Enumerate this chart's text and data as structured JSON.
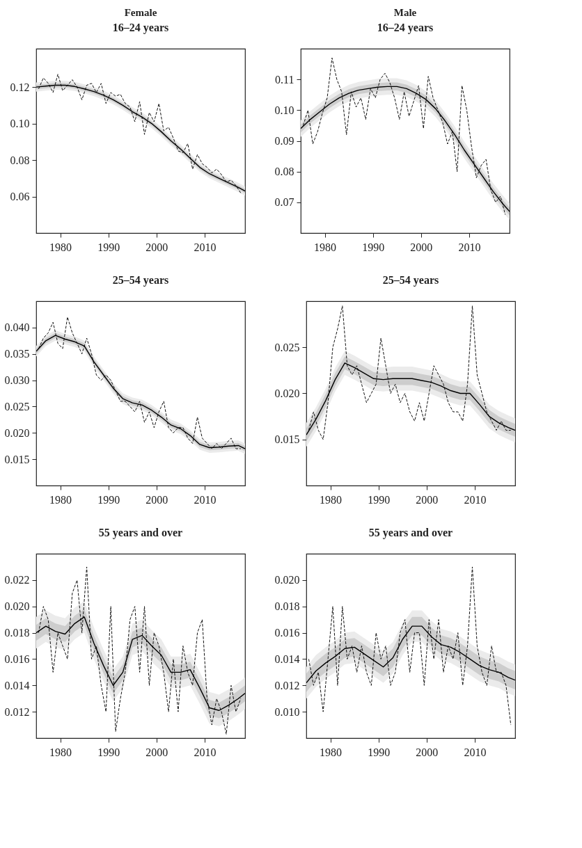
{
  "chart_data": [
    {
      "type": "line",
      "title": "Female",
      "subtitle": "16–24 years",
      "xlim": [
        1975,
        2018.4
      ],
      "ylim": [
        0.04,
        0.141
      ],
      "xticks": [
        1980,
        1990,
        2000,
        2010
      ],
      "yticks": [
        {
          "value": 0.06,
          "label": "0.06"
        },
        {
          "value": 0.08,
          "label": "0.08"
        },
        {
          "value": 0.1,
          "label": "0.10"
        },
        {
          "value": 0.12,
          "label": "0.12"
        }
      ],
      "grid": false,
      "series": [
        {
          "type": "line",
          "color": "#ebebeb",
          "x": [
            1975,
            1977,
            1979,
            1981,
            1983,
            1985,
            1987,
            1989,
            1991,
            1993,
            1995,
            1997,
            1999,
            2001,
            2003,
            2005,
            2007,
            2009,
            2011,
            2013,
            2015,
            2017,
            2018.4
          ],
          "values": [
            null,
            null,
            null,
            null,
            null,
            null,
            null,
            null,
            null,
            null,
            null,
            null,
            null,
            null,
            null,
            null,
            null,
            null,
            null,
            null,
            null,
            null,
            null
          ],
          "lower": [
            0.1175,
            0.118,
            0.1185,
            0.1185,
            0.1178,
            0.1165,
            0.115,
            0.113,
            0.1105,
            0.1075,
            0.104,
            0.101,
            0.0975,
            0.093,
            0.088,
            0.0835,
            0.0785,
            0.0735,
            0.07,
            0.0675,
            0.065,
            0.0625,
            0.0605
          ],
          "upper": [
            0.1225,
            0.123,
            0.1235,
            0.1235,
            0.1228,
            0.1215,
            0.12,
            0.118,
            0.1155,
            0.1125,
            0.109,
            0.106,
            0.1025,
            0.098,
            0.093,
            0.0885,
            0.0835,
            0.0785,
            0.075,
            0.0725,
            0.07,
            0.0675,
            0.0655
          ]
        },
        {
          "type": "line",
          "color": "#111111",
          "line_style": "dashed",
          "x": [
            1975.5,
            1976.5,
            1977.5,
            1978.5,
            1979.5,
            1980.5,
            1981.5,
            1982.5,
            1983.5,
            1984.5,
            1985.5,
            1986.5,
            1987.5,
            1988.5,
            1989.5,
            1990.5,
            1991.5,
            1992.5,
            1993.5,
            1994.5,
            1995.5,
            1996.5,
            1997.5,
            1998.5,
            1999.5,
            2000.5,
            2001.5,
            2002.5,
            2003.5,
            2004.5,
            2005.5,
            2006.5,
            2007.5,
            2008.5,
            2009.5,
            2010.5,
            2011.5,
            2012.5,
            2013.5,
            2014.5,
            2015.5,
            2016.5,
            2017.5
          ],
          "values": [
            0.119,
            0.125,
            0.122,
            0.117,
            0.127,
            0.118,
            0.121,
            0.124,
            0.12,
            0.113,
            0.121,
            0.122,
            0.117,
            0.122,
            0.111,
            0.117,
            0.115,
            0.116,
            0.111,
            0.109,
            0.101,
            0.112,
            0.094,
            0.106,
            0.101,
            0.111,
            0.096,
            0.098,
            0.092,
            0.085,
            0.084,
            0.089,
            0.075,
            0.083,
            0.078,
            0.076,
            0.073,
            0.075,
            0.072,
            0.068,
            0.069,
            0.066,
            0.062
          ]
        },
        {
          "type": "line",
          "color": "#000000",
          "line_style": "solid",
          "x": [
            1975,
            1977,
            1979,
            1981,
            1983,
            1985,
            1987,
            1989,
            1991,
            1993,
            1995,
            1997,
            1999,
            2001,
            2003,
            2005,
            2007,
            2009,
            2011,
            2013,
            2015,
            2017,
            2018.4
          ],
          "values": [
            0.12,
            0.1205,
            0.121,
            0.121,
            0.1203,
            0.119,
            0.1175,
            0.1155,
            0.113,
            0.11,
            0.1065,
            0.1035,
            0.1,
            0.0955,
            0.0905,
            0.086,
            0.081,
            0.076,
            0.0725,
            0.07,
            0.0675,
            0.065,
            0.063
          ],
          "lower": [
            0.1188,
            0.1193,
            0.1198,
            0.1198,
            0.1191,
            0.1178,
            0.1163,
            0.1143,
            0.1118,
            0.1088,
            0.1053,
            0.1023,
            0.0988,
            0.0943,
            0.0893,
            0.0848,
            0.0798,
            0.0748,
            0.0713,
            0.0688,
            0.0663,
            0.0638,
            0.0618
          ],
          "upper": [
            0.1212,
            0.1217,
            0.1222,
            0.1222,
            0.1215,
            0.1202,
            0.1187,
            0.1167,
            0.1142,
            0.1112,
            0.1077,
            0.1047,
            0.1012,
            0.0967,
            0.0917,
            0.0872,
            0.0822,
            0.0772,
            0.0737,
            0.0712,
            0.0687,
            0.0662,
            0.0642
          ]
        }
      ]
    },
    {
      "type": "line",
      "title": "Male",
      "subtitle": "16–24 years",
      "xlim": [
        1975,
        2018.4
      ],
      "ylim": [
        0.06,
        0.12
      ],
      "xticks": [
        1980,
        1990,
        2000,
        2010
      ],
      "yticks": [
        {
          "value": 0.07,
          "label": "0.07"
        },
        {
          "value": 0.08,
          "label": "0.08"
        },
        {
          "value": 0.09,
          "label": "0.09"
        },
        {
          "value": 0.1,
          "label": "0.10"
        },
        {
          "value": 0.11,
          "label": "0.11"
        }
      ],
      "grid": false,
      "series": [
        {
          "type": "line",
          "color": "#ebebeb",
          "x": [
            1975,
            1977,
            1979,
            1981,
            1983,
            1985,
            1987,
            1989,
            1991,
            1993,
            1995,
            1997,
            1999,
            2001,
            2003,
            2005,
            2007,
            2009,
            2011,
            2013,
            2015,
            2017,
            2018.4
          ],
          "values": [
            null,
            null,
            null,
            null,
            null,
            null,
            null,
            null,
            null,
            null,
            null,
            null,
            null,
            null,
            null,
            null,
            null,
            null,
            null,
            null,
            null,
            null,
            null
          ],
          "lower": [
            0.0913,
            0.0943,
            0.0968,
            0.0993,
            0.1013,
            0.1028,
            0.1038,
            0.1043,
            0.1048,
            0.105,
            0.105,
            0.1043,
            0.1028,
            0.1008,
            0.0978,
            0.0938,
            0.0893,
            0.0843,
            0.0798,
            0.0753,
            0.0708,
            0.0668,
            0.0643
          ],
          "upper": [
            0.0967,
            0.0997,
            0.1022,
            0.1047,
            0.1067,
            0.1082,
            0.1092,
            0.1097,
            0.1102,
            0.1104,
            0.1104,
            0.1097,
            0.1082,
            0.1062,
            0.1032,
            0.0992,
            0.0947,
            0.0897,
            0.0852,
            0.0807,
            0.0762,
            0.0722,
            0.0697
          ]
        },
        {
          "type": "line",
          "color": "#111111",
          "line_style": "dashed",
          "x": [
            1975.5,
            1976.5,
            1977.5,
            1978.5,
            1979.5,
            1980.5,
            1981.5,
            1982.5,
            1983.5,
            1984.5,
            1985.5,
            1986.5,
            1987.5,
            1988.5,
            1989.5,
            1990.5,
            1991.5,
            1992.5,
            1993.5,
            1994.5,
            1995.5,
            1996.5,
            1997.5,
            1998.5,
            1999.5,
            2000.5,
            2001.5,
            2002.5,
            2003.5,
            2004.5,
            2005.5,
            2006.5,
            2007.5,
            2008.5,
            2009.5,
            2010.5,
            2011.5,
            2012.5,
            2013.5,
            2014.5,
            2015.5,
            2016.5,
            2017.5
          ],
          "values": [
            0.095,
            0.1,
            0.089,
            0.093,
            0.099,
            0.104,
            0.117,
            0.11,
            0.106,
            0.092,
            0.106,
            0.101,
            0.104,
            0.097,
            0.107,
            0.104,
            0.11,
            0.112,
            0.109,
            0.104,
            0.097,
            0.106,
            0.098,
            0.103,
            0.108,
            0.094,
            0.111,
            0.104,
            0.1,
            0.096,
            0.089,
            0.093,
            0.08,
            0.108,
            0.1,
            0.088,
            0.078,
            0.082,
            0.084,
            0.074,
            0.07,
            0.072,
            0.066
          ]
        },
        {
          "type": "line",
          "color": "#000000",
          "line_style": "solid",
          "x": [
            1975,
            1977,
            1979,
            1981,
            1983,
            1985,
            1987,
            1989,
            1991,
            1993,
            1995,
            1997,
            1999,
            2001,
            2003,
            2005,
            2007,
            2009,
            2011,
            2013,
            2015,
            2017,
            2018.4
          ],
          "values": [
            0.094,
            0.097,
            0.0995,
            0.102,
            0.104,
            0.1055,
            0.1065,
            0.107,
            0.1075,
            0.1077,
            0.1077,
            0.107,
            0.1055,
            0.1035,
            0.1005,
            0.0965,
            0.092,
            0.087,
            0.0825,
            0.078,
            0.0735,
            0.0695,
            0.067
          ],
          "lower": [
            0.0927,
            0.0957,
            0.0982,
            0.1007,
            0.1027,
            0.1042,
            0.1052,
            0.1057,
            0.1062,
            0.1064,
            0.1064,
            0.1057,
            0.1042,
            0.1022,
            0.0992,
            0.0952,
            0.0907,
            0.0857,
            0.0812,
            0.0767,
            0.0722,
            0.0682,
            0.0657
          ],
          "upper": [
            0.0953,
            0.0983,
            0.1008,
            0.1033,
            0.1053,
            0.1068,
            0.1078,
            0.1083,
            0.1088,
            0.109,
            0.109,
            0.1083,
            0.1068,
            0.1048,
            0.1018,
            0.0978,
            0.0933,
            0.0883,
            0.0838,
            0.0793,
            0.0748,
            0.0708,
            0.0683
          ]
        }
      ]
    },
    {
      "type": "line",
      "title": "25–54 years",
      "xlim": [
        1975,
        2018.4
      ],
      "ylim": [
        0.01,
        0.045
      ],
      "xticks": [
        1980,
        1990,
        2000,
        2010
      ],
      "yticks": [
        {
          "value": 0.015,
          "label": "0.015"
        },
        {
          "value": 0.02,
          "label": "0.020"
        },
        {
          "value": 0.025,
          "label": "0.025"
        },
        {
          "value": 0.03,
          "label": "0.030"
        },
        {
          "value": 0.035,
          "label": "0.035"
        },
        {
          "value": 0.04,
          "label": "0.040"
        }
      ],
      "grid": false,
      "series": [
        {
          "type": "line",
          "color": "#ebebeb",
          "x": [
            1975,
            1977,
            1979,
            1981,
            1983,
            1985,
            1987,
            1989,
            1991,
            1993,
            1995,
            1997,
            1999,
            2001,
            2003,
            2005,
            2007,
            2009,
            2011,
            2013,
            2015,
            2017,
            2018.4
          ],
          "values": [
            null,
            null,
            null,
            null,
            null,
            null,
            null,
            null,
            null,
            null,
            null,
            null,
            null,
            null,
            null,
            null,
            null,
            null,
            null,
            null,
            null,
            null,
            null
          ],
          "lower": [
            0.0345,
            0.0365,
            0.0375,
            0.0368,
            0.0363,
            0.0355,
            0.0325,
            0.03,
            0.0275,
            0.0255,
            0.0247,
            0.0243,
            0.0233,
            0.022,
            0.0205,
            0.0198,
            0.0185,
            0.0168,
            0.0162,
            0.0163,
            0.0165,
            0.0166,
            0.016
          ],
          "upper": [
            0.0365,
            0.0385,
            0.0395,
            0.0388,
            0.0383,
            0.0375,
            0.0345,
            0.032,
            0.0295,
            0.0275,
            0.0267,
            0.0263,
            0.0253,
            0.024,
            0.0225,
            0.0218,
            0.0205,
            0.0188,
            0.0182,
            0.0183,
            0.0185,
            0.0186,
            0.018
          ]
        },
        {
          "type": "line",
          "color": "#111111",
          "line_style": "dashed",
          "x": [
            1975.5,
            1976.5,
            1977.5,
            1978.5,
            1979.5,
            1980.5,
            1981.5,
            1982.5,
            1983.5,
            1984.5,
            1985.5,
            1986.5,
            1987.5,
            1988.5,
            1989.5,
            1990.5,
            1991.5,
            1992.5,
            1993.5,
            1994.5,
            1995.5,
            1996.5,
            1997.5,
            1998.5,
            1999.5,
            2000.5,
            2001.5,
            2002.5,
            2003.5,
            2004.5,
            2005.5,
            2006.5,
            2007.5,
            2008.5,
            2009.5,
            2010.5,
            2011.5,
            2012.5,
            2013.5,
            2014.5,
            2015.5,
            2016.5,
            2017.5
          ],
          "values": [
            0.036,
            0.038,
            0.039,
            0.041,
            0.037,
            0.036,
            0.042,
            0.039,
            0.037,
            0.035,
            0.038,
            0.035,
            0.031,
            0.03,
            0.031,
            0.03,
            0.028,
            0.026,
            0.026,
            0.025,
            0.024,
            0.026,
            0.022,
            0.024,
            0.021,
            0.024,
            0.026,
            0.021,
            0.02,
            0.021,
            0.021,
            0.019,
            0.018,
            0.023,
            0.019,
            0.018,
            0.017,
            0.018,
            0.017,
            0.018,
            0.019,
            0.017,
            0.017
          ]
        },
        {
          "type": "line",
          "color": "#000000",
          "line_style": "solid",
          "x": [
            1975,
            1977,
            1979,
            1981,
            1983,
            1985,
            1987,
            1989,
            1991,
            1993,
            1995,
            1997,
            1999,
            2001,
            2003,
            2005,
            2007,
            2009,
            2011,
            2013,
            2015,
            2017,
            2018.4
          ],
          "values": [
            0.0355,
            0.0375,
            0.0385,
            0.0378,
            0.0373,
            0.0365,
            0.0335,
            0.031,
            0.0285,
            0.0265,
            0.0257,
            0.0253,
            0.0243,
            0.023,
            0.0215,
            0.0208,
            0.0195,
            0.0178,
            0.0172,
            0.0173,
            0.0175,
            0.0176,
            0.017
          ],
          "lower": [
            0.035,
            0.037,
            0.038,
            0.0373,
            0.0368,
            0.036,
            0.033,
            0.0305,
            0.028,
            0.026,
            0.0252,
            0.0248,
            0.0238,
            0.0225,
            0.021,
            0.0203,
            0.019,
            0.0173,
            0.0167,
            0.0168,
            0.017,
            0.0171,
            0.0165
          ],
          "upper": [
            0.036,
            0.038,
            0.039,
            0.0383,
            0.0378,
            0.037,
            0.034,
            0.0315,
            0.029,
            0.027,
            0.0262,
            0.0258,
            0.0248,
            0.0235,
            0.022,
            0.0213,
            0.02,
            0.0183,
            0.0177,
            0.0178,
            0.018,
            0.0181,
            0.0175
          ]
        }
      ]
    },
    {
      "type": "line",
      "title": "25–54 years",
      "xlim": [
        1975,
        2018.4
      ],
      "ylim": [
        0.01,
        0.03
      ],
      "xticks": [
        1980,
        1990,
        2000,
        2010
      ],
      "yticks": [
        {
          "value": 0.015,
          "label": "0.015"
        },
        {
          "value": 0.02,
          "label": "0.020"
        },
        {
          "value": 0.025,
          "label": "0.025"
        }
      ],
      "grid": false,
      "series": [
        {
          "type": "line",
          "color": "#ebebeb",
          "x": [
            1975,
            1977,
            1979,
            1981,
            1983,
            1985,
            1987,
            1989,
            1991,
            1993,
            1995,
            1997,
            1999,
            2001,
            2003,
            2005,
            2007,
            2009,
            2011,
            2013,
            2015,
            2017,
            2018.4
          ],
          "values": [
            null,
            null,
            null,
            null,
            null,
            null,
            null,
            null,
            null,
            null,
            null,
            null,
            null,
            null,
            null,
            null,
            null,
            null,
            null,
            null,
            null,
            null,
            null
          ],
          "lower": [
            0.0142,
            0.0159,
            0.0179,
            0.0202,
            0.022,
            0.0215,
            0.0209,
            0.0203,
            0.0202,
            0.0203,
            0.0203,
            0.0203,
            0.0201,
            0.0199,
            0.0195,
            0.019,
            0.0187,
            0.0187,
            0.0175,
            0.0162,
            0.0155,
            0.015,
            0.0147
          ],
          "upper": [
            0.0168,
            0.0185,
            0.0205,
            0.0228,
            0.0246,
            0.0241,
            0.0235,
            0.0229,
            0.0228,
            0.0229,
            0.0229,
            0.0229,
            0.0227,
            0.0225,
            0.0221,
            0.0216,
            0.0213,
            0.0213,
            0.0201,
            0.0188,
            0.0181,
            0.0176,
            0.0173
          ]
        },
        {
          "type": "line",
          "color": "#111111",
          "line_style": "dashed",
          "x": [
            1975.5,
            1976.5,
            1977.5,
            1978.5,
            1979.5,
            1980.5,
            1981.5,
            1982.5,
            1983.5,
            1984.5,
            1985.5,
            1986.5,
            1987.5,
            1988.5,
            1989.5,
            1990.5,
            1991.5,
            1992.5,
            1993.5,
            1994.5,
            1995.5,
            1996.5,
            1997.5,
            1998.5,
            1999.5,
            2000.5,
            2001.5,
            2002.5,
            2003.5,
            2004.5,
            2005.5,
            2006.5,
            2007.5,
            2008.5,
            2009.5,
            2010.5,
            2011.5,
            2012.5,
            2013.5,
            2014.5,
            2015.5,
            2016.5,
            2017.5
          ],
          "values": [
            0.016,
            0.018,
            0.016,
            0.015,
            0.019,
            0.025,
            0.027,
            0.0295,
            0.023,
            0.022,
            0.023,
            0.021,
            0.019,
            0.02,
            0.021,
            0.026,
            0.023,
            0.02,
            0.021,
            0.019,
            0.02,
            0.018,
            0.017,
            0.019,
            0.017,
            0.02,
            0.023,
            0.022,
            0.021,
            0.019,
            0.018,
            0.018,
            0.017,
            0.021,
            0.0295,
            0.022,
            0.02,
            0.018,
            0.017,
            0.016,
            0.017,
            0.016,
            0.016
          ]
        },
        {
          "type": "line",
          "color": "#000000",
          "line_style": "solid",
          "x": [
            1975,
            1977,
            1979,
            1981,
            1983,
            1985,
            1987,
            1989,
            1991,
            1993,
            1995,
            1997,
            1999,
            2001,
            2003,
            2005,
            2007,
            2009,
            2011,
            2013,
            2015,
            2017,
            2018.4
          ],
          "values": [
            0.0155,
            0.0172,
            0.0192,
            0.0215,
            0.0233,
            0.0228,
            0.0222,
            0.0216,
            0.0215,
            0.0216,
            0.0216,
            0.0216,
            0.0214,
            0.0212,
            0.0208,
            0.0203,
            0.02,
            0.02,
            0.0188,
            0.0175,
            0.0168,
            0.0163,
            0.016
          ],
          "lower": [
            0.0148,
            0.0165,
            0.0185,
            0.0208,
            0.0226,
            0.0221,
            0.0215,
            0.0209,
            0.0208,
            0.0209,
            0.0209,
            0.0209,
            0.0207,
            0.0205,
            0.0201,
            0.0196,
            0.0193,
            0.0193,
            0.0181,
            0.0168,
            0.0161,
            0.0156,
            0.0153
          ],
          "upper": [
            0.0162,
            0.0179,
            0.0199,
            0.0222,
            0.024,
            0.0235,
            0.0229,
            0.0223,
            0.0222,
            0.0223,
            0.0223,
            0.0223,
            0.0221,
            0.0219,
            0.0215,
            0.021,
            0.0207,
            0.0207,
            0.0195,
            0.0182,
            0.0175,
            0.017,
            0.0167
          ]
        }
      ]
    },
    {
      "type": "line",
      "title": "55 years and over",
      "xlim": [
        1975,
        2018.4
      ],
      "ylim": [
        0.01,
        0.024
      ],
      "xticks": [
        1980,
        1990,
        2000,
        2010
      ],
      "yticks": [
        {
          "value": 0.012,
          "label": "0.012"
        },
        {
          "value": 0.014,
          "label": "0.014"
        },
        {
          "value": 0.016,
          "label": "0.016"
        },
        {
          "value": 0.018,
          "label": "0.018"
        },
        {
          "value": 0.02,
          "label": "0.020"
        },
        {
          "value": 0.022,
          "label": "0.022"
        }
      ],
      "grid": false,
      "series": [
        {
          "type": "line",
          "color": "#ebebeb",
          "x": [
            1975,
            1977,
            1979,
            1981,
            1983,
            1985,
            1987,
            1989,
            1991,
            1993,
            1995,
            1997,
            1999,
            2001,
            2003,
            2005,
            2007,
            2009,
            2011,
            2013,
            2015,
            2017,
            2018.4
          ],
          "values": [
            null,
            null,
            null,
            null,
            null,
            null,
            null,
            null,
            null,
            null,
            null,
            null,
            null,
            null,
            null,
            null,
            null,
            null,
            null,
            null,
            null,
            null,
            null
          ],
          "lower": [
            0.0168,
            0.0173,
            0.0169,
            0.0167,
            0.0175,
            0.018,
            0.016,
            0.0143,
            0.0128,
            0.0138,
            0.0163,
            0.0166,
            0.0158,
            0.0151,
            0.0138,
            0.0138,
            0.014,
            0.0126,
            0.0111,
            0.0109,
            0.0113,
            0.0118,
            0.0122
          ],
          "upper": [
            0.0192,
            0.0197,
            0.0193,
            0.0191,
            0.0199,
            0.0204,
            0.0184,
            0.0167,
            0.0152,
            0.0162,
            0.0187,
            0.019,
            0.0182,
            0.0175,
            0.0162,
            0.0162,
            0.0164,
            0.015,
            0.0135,
            0.0133,
            0.0137,
            0.0142,
            0.0146
          ]
        },
        {
          "type": "line",
          "color": "#111111",
          "line_style": "dashed",
          "x": [
            1975.5,
            1976.5,
            1977.5,
            1978.5,
            1979.5,
            1980.5,
            1981.5,
            1982.5,
            1983.5,
            1984.5,
            1985.5,
            1986.5,
            1987.5,
            1988.5,
            1989.5,
            1990.5,
            1991.5,
            1992.5,
            1993.5,
            1994.5,
            1995.5,
            1996.5,
            1997.5,
            1998.5,
            1999.5,
            2000.5,
            2001.5,
            2002.5,
            2003.5,
            2004.5,
            2005.5,
            2006.5,
            2007.5,
            2008.5,
            2009.5,
            2010.5,
            2011.5,
            2012.5,
            2013.5,
            2014.5,
            2015.5,
            2016.5,
            2017.5
          ],
          "values": [
            0.018,
            0.02,
            0.019,
            0.015,
            0.018,
            0.017,
            0.016,
            0.021,
            0.022,
            0.018,
            0.023,
            0.016,
            0.017,
            0.014,
            0.012,
            0.02,
            0.0105,
            0.013,
            0.015,
            0.019,
            0.02,
            0.015,
            0.02,
            0.014,
            0.018,
            0.017,
            0.015,
            0.012,
            0.016,
            0.012,
            0.017,
            0.015,
            0.014,
            0.018,
            0.019,
            0.013,
            0.011,
            0.013,
            0.012,
            0.0103,
            0.014,
            0.012,
            0.013
          ]
        },
        {
          "type": "line",
          "color": "#000000",
          "line_style": "solid",
          "x": [
            1975,
            1977,
            1979,
            1981,
            1983,
            1985,
            1987,
            1989,
            1991,
            1993,
            1995,
            1997,
            1999,
            2001,
            2003,
            2005,
            2007,
            2009,
            2011,
            2013,
            2015,
            2017,
            2018.4
          ],
          "values": [
            0.018,
            0.0185,
            0.0181,
            0.0179,
            0.0187,
            0.0192,
            0.0172,
            0.0155,
            0.014,
            0.015,
            0.0175,
            0.0178,
            0.017,
            0.0163,
            0.015,
            0.015,
            0.0152,
            0.0138,
            0.0123,
            0.0121,
            0.0125,
            0.013,
            0.0134
          ],
          "lower": [
            0.0174,
            0.0179,
            0.0175,
            0.0173,
            0.0181,
            0.0186,
            0.0166,
            0.0149,
            0.0134,
            0.0144,
            0.0169,
            0.0172,
            0.0164,
            0.0157,
            0.0144,
            0.0144,
            0.0146,
            0.0132,
            0.0117,
            0.0115,
            0.0119,
            0.0124,
            0.0128
          ],
          "upper": [
            0.0186,
            0.0191,
            0.0187,
            0.0185,
            0.0193,
            0.0198,
            0.0178,
            0.0161,
            0.0146,
            0.0156,
            0.0181,
            0.0184,
            0.0176,
            0.0169,
            0.0156,
            0.0156,
            0.0158,
            0.0144,
            0.0129,
            0.0127,
            0.0131,
            0.0136,
            0.014
          ]
        }
      ]
    },
    {
      "type": "line",
      "title": "55 years and over",
      "xlim": [
        1975,
        2018.4
      ],
      "ylim": [
        0.008,
        0.022
      ],
      "xticks": [
        1980,
        1990,
        2000,
        2010
      ],
      "yticks": [
        {
          "value": 0.01,
          "label": "0.010"
        },
        {
          "value": 0.012,
          "label": "0.012"
        },
        {
          "value": 0.014,
          "label": "0.014"
        },
        {
          "value": 0.016,
          "label": "0.016"
        },
        {
          "value": 0.018,
          "label": "0.018"
        },
        {
          "value": 0.02,
          "label": "0.020"
        }
      ],
      "grid": false,
      "series": [
        {
          "type": "line",
          "color": "#ebebeb",
          "x": [
            1975,
            1977,
            1979,
            1981,
            1983,
            1985,
            1987,
            1989,
            1991,
            1993,
            1995,
            1997,
            1999,
            2001,
            2003,
            2005,
            2007,
            2009,
            2011,
            2013,
            2015,
            2017,
            2018.4
          ],
          "values": [
            null,
            null,
            null,
            null,
            null,
            null,
            null,
            null,
            null,
            null,
            null,
            null,
            null,
            null,
            null,
            null,
            null,
            null,
            null,
            null,
            null,
            null,
            null
          ],
          "lower": [
            0.011,
            0.0119,
            0.0125,
            0.013,
            0.0136,
            0.0137,
            0.0132,
            0.0127,
            0.0122,
            0.0129,
            0.0143,
            0.0153,
            0.0153,
            0.0145,
            0.0139,
            0.0137,
            0.0133,
            0.0128,
            0.0123,
            0.012,
            0.0118,
            0.0114,
            0.0112
          ],
          "upper": [
            0.0134,
            0.0143,
            0.0149,
            0.0154,
            0.016,
            0.0161,
            0.0156,
            0.0151,
            0.0146,
            0.0153,
            0.0167,
            0.0177,
            0.0177,
            0.0169,
            0.0163,
            0.0161,
            0.0157,
            0.0152,
            0.0147,
            0.0144,
            0.0142,
            0.0138,
            0.0136
          ]
        },
        {
          "type": "line",
          "color": "#111111",
          "line_style": "dashed",
          "x": [
            1975.5,
            1976.5,
            1977.5,
            1978.5,
            1979.5,
            1980.5,
            1981.5,
            1982.5,
            1983.5,
            1984.5,
            1985.5,
            1986.5,
            1987.5,
            1988.5,
            1989.5,
            1990.5,
            1991.5,
            1992.5,
            1993.5,
            1994.5,
            1995.5,
            1996.5,
            1997.5,
            1998.5,
            1999.5,
            2000.5,
            2001.5,
            2002.5,
            2003.5,
            2004.5,
            2005.5,
            2006.5,
            2007.5,
            2008.5,
            2009.5,
            2010.5,
            2011.5,
            2012.5,
            2013.5,
            2014.5,
            2015.5,
            2016.5,
            2017.5
          ],
          "values": [
            0.014,
            0.012,
            0.013,
            0.01,
            0.014,
            0.018,
            0.012,
            0.018,
            0.014,
            0.015,
            0.013,
            0.015,
            0.013,
            0.012,
            0.016,
            0.014,
            0.015,
            0.012,
            0.013,
            0.016,
            0.017,
            0.013,
            0.016,
            0.016,
            0.012,
            0.017,
            0.014,
            0.017,
            0.013,
            0.015,
            0.014,
            0.016,
            0.012,
            0.015,
            0.021,
            0.015,
            0.013,
            0.012,
            0.015,
            0.013,
            0.013,
            0.012,
            0.009
          ]
        },
        {
          "type": "line",
          "color": "#000000",
          "line_style": "solid",
          "x": [
            1975,
            1977,
            1979,
            1981,
            1983,
            1985,
            1987,
            1989,
            1991,
            1993,
            1995,
            1997,
            1999,
            2001,
            2003,
            2005,
            2007,
            2009,
            2011,
            2013,
            2015,
            2017,
            2018.4
          ],
          "values": [
            0.0122,
            0.0131,
            0.0137,
            0.0142,
            0.0148,
            0.0149,
            0.0144,
            0.0139,
            0.0134,
            0.0141,
            0.0155,
            0.0165,
            0.0165,
            0.0157,
            0.0151,
            0.0149,
            0.0145,
            0.014,
            0.0135,
            0.0132,
            0.013,
            0.0126,
            0.0124
          ],
          "lower": [
            0.0115,
            0.0124,
            0.013,
            0.0135,
            0.0141,
            0.0142,
            0.0137,
            0.0132,
            0.0127,
            0.0134,
            0.0148,
            0.0158,
            0.0158,
            0.015,
            0.0144,
            0.0142,
            0.0138,
            0.0133,
            0.0128,
            0.0125,
            0.0123,
            0.0119,
            0.0117
          ],
          "upper": [
            0.0129,
            0.0138,
            0.0144,
            0.0149,
            0.0155,
            0.0156,
            0.0151,
            0.0146,
            0.0141,
            0.0148,
            0.0162,
            0.0172,
            0.0172,
            0.0164,
            0.0158,
            0.0156,
            0.0152,
            0.0147,
            0.0142,
            0.0139,
            0.0137,
            0.0133,
            0.0131
          ]
        }
      ]
    }
  ]
}
